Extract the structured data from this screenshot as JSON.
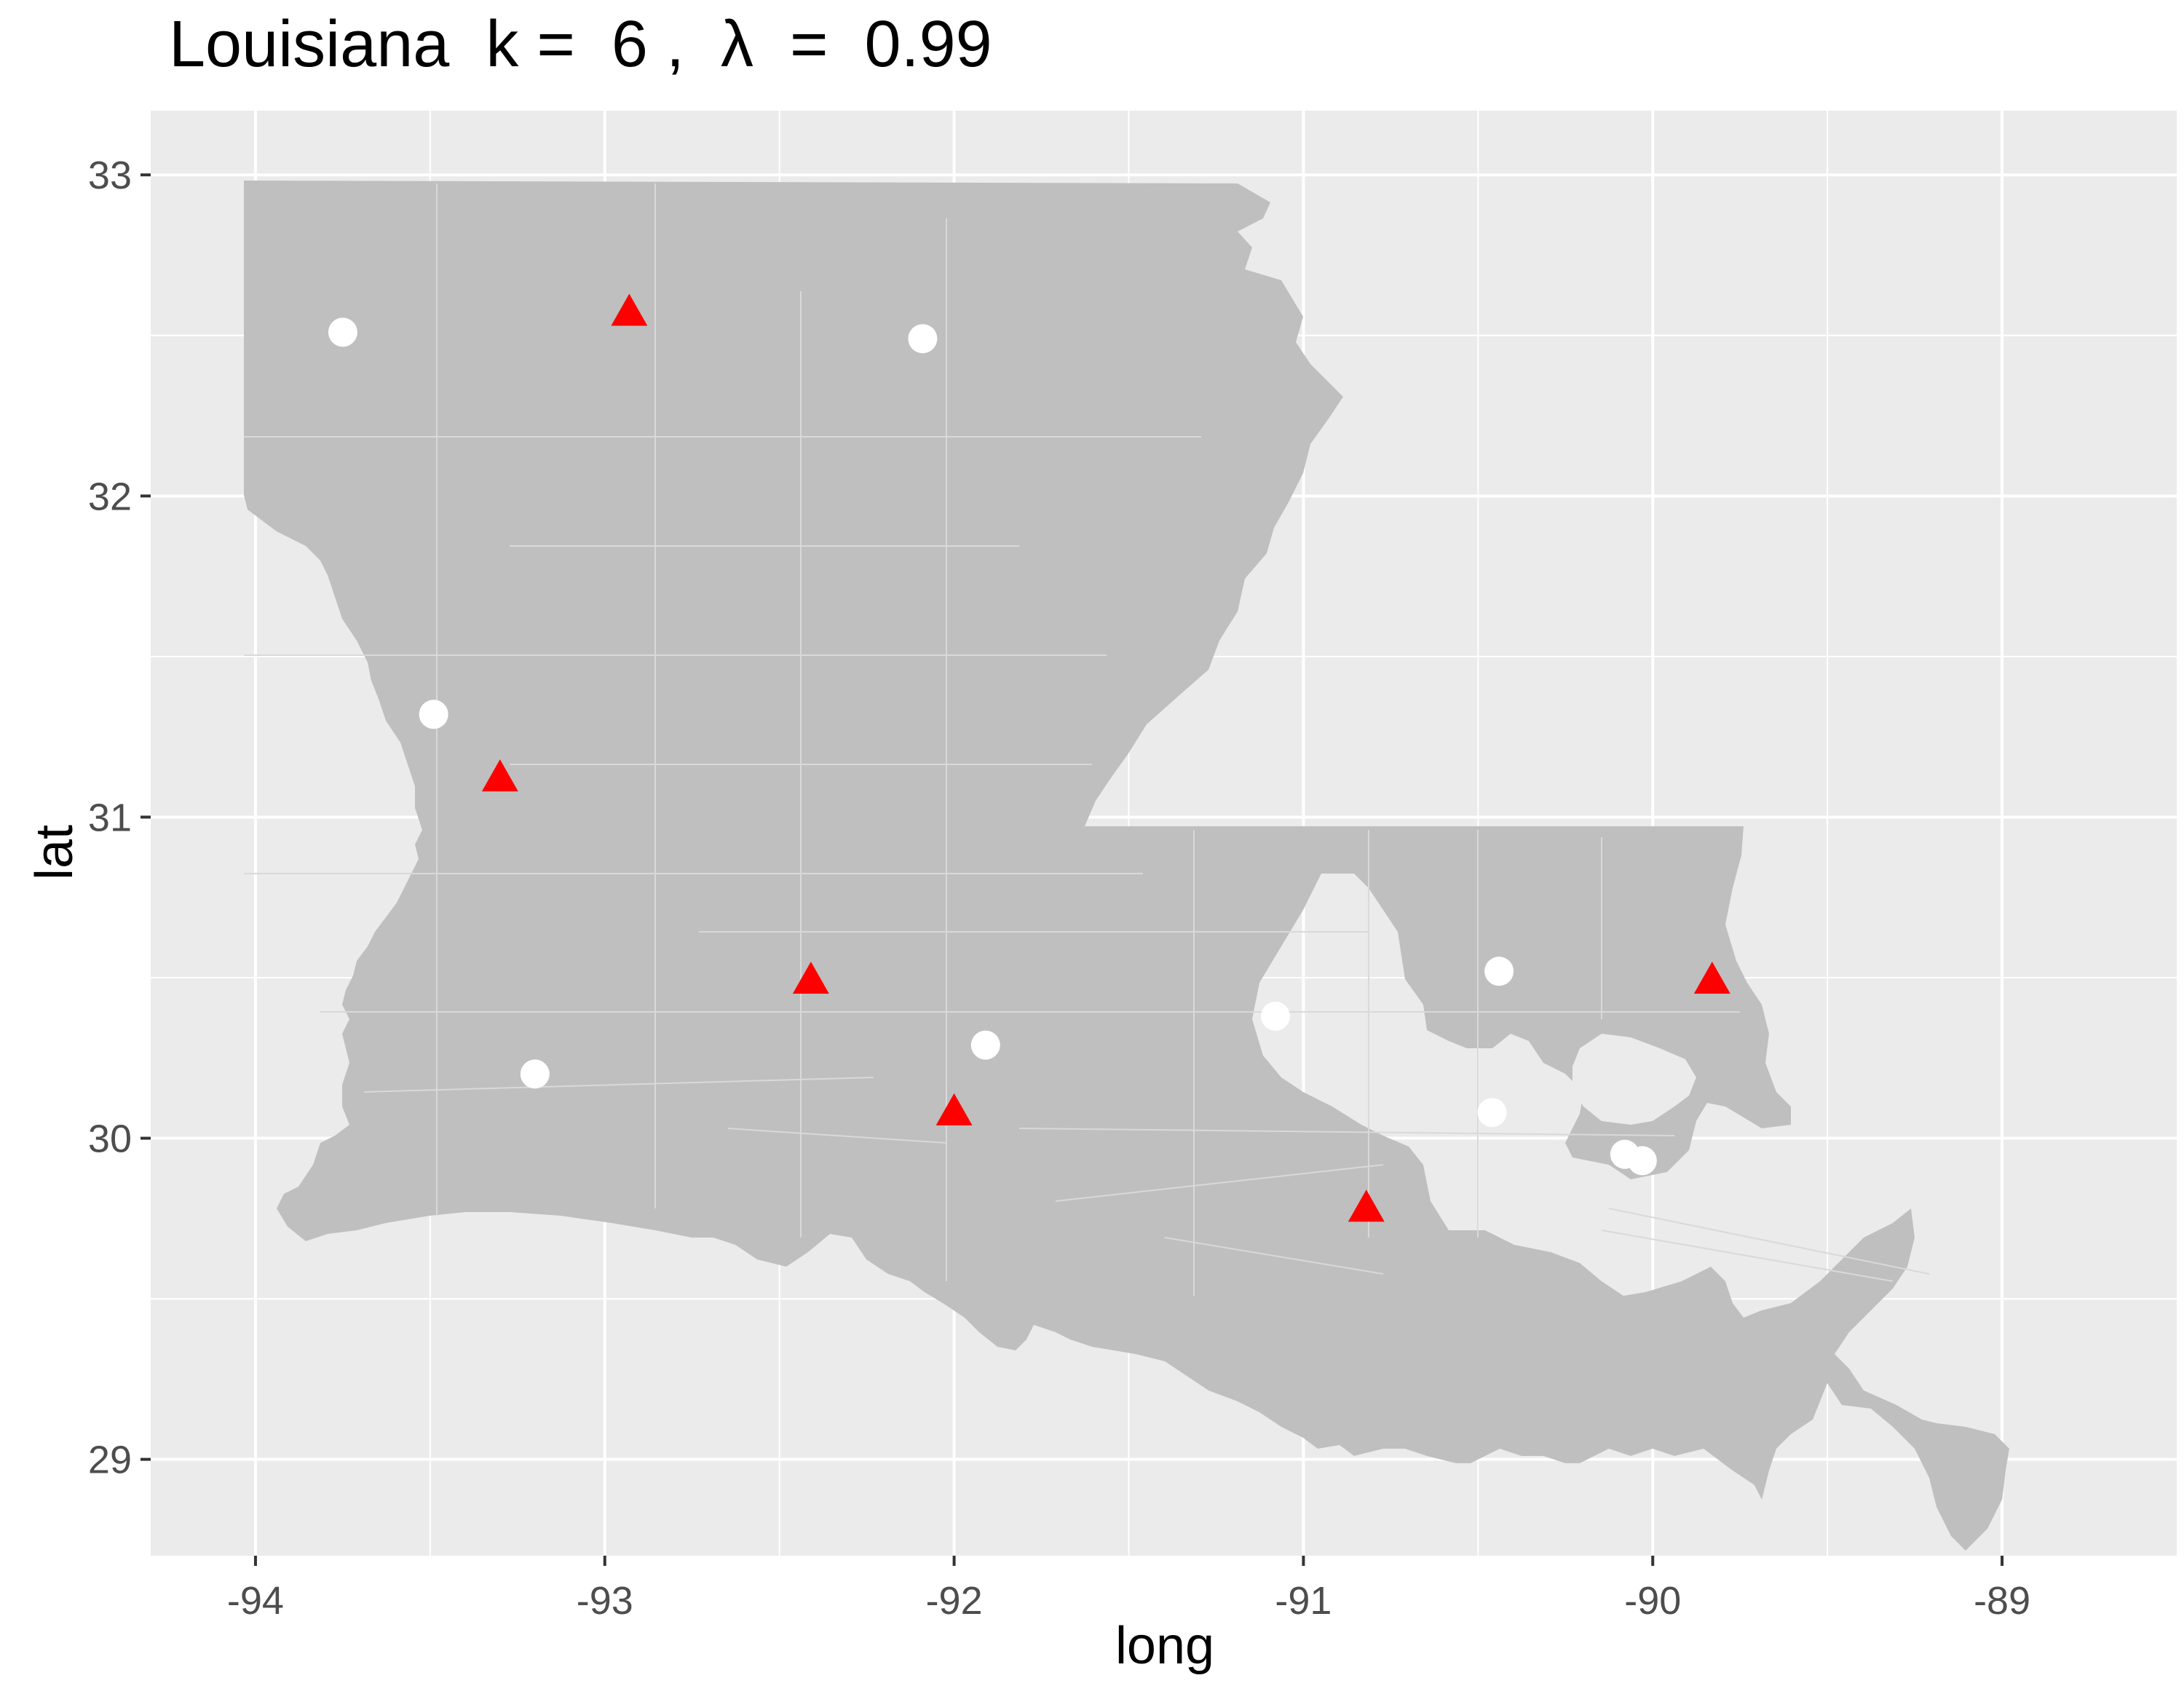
{
  "title": "Louisiana  k =  6 ,  λ  =  0.99",
  "x_axis": {
    "label": "long",
    "ticks": [
      "-94",
      "-93",
      "-92",
      "-91",
      "-90",
      "-89"
    ]
  },
  "y_axis": {
    "label": "lat",
    "ticks": [
      "33",
      "32",
      "31",
      "30",
      "29"
    ]
  },
  "colors": {
    "panel": "#ebebeb",
    "grid": "#ffffff",
    "land": "#bfbfbf",
    "boundary": "#d9d9d9",
    "circle": "#ffffff",
    "triangle": "#ff0000"
  },
  "chart_data": {
    "type": "scatter",
    "xlabel": "long",
    "ylabel": "lat",
    "xlim": [
      -94.3,
      -88.5
    ],
    "ylim": [
      28.7,
      33.2
    ],
    "xticks": [
      -94,
      -93,
      -92,
      -91,
      -90,
      -89
    ],
    "yticks": [
      29,
      30,
      31,
      32,
      33
    ],
    "grid": true,
    "background_layer": "Louisiana census tract polygons (grey fill, white borders)",
    "series": [
      {
        "marker": "circle",
        "color": "#ffffff",
        "points": [
          [
            -93.75,
            32.51
          ],
          [
            -92.09,
            32.49
          ],
          [
            -93.49,
            31.32
          ],
          [
            -91.08,
            30.38
          ],
          [
            -90.44,
            30.52
          ],
          [
            -91.91,
            30.29
          ],
          [
            -93.2,
            30.2
          ],
          [
            -90.46,
            30.08
          ],
          [
            -90.08,
            29.95
          ],
          [
            -90.03,
            29.93
          ]
        ]
      },
      {
        "marker": "triangle",
        "color": "#ff0000",
        "points": [
          [
            -92.93,
            32.57
          ],
          [
            -93.3,
            31.12
          ],
          [
            -92.41,
            30.49
          ],
          [
            -92.0,
            30.08
          ],
          [
            -90.82,
            29.78
          ],
          [
            -89.83,
            30.49
          ]
        ]
      }
    ]
  }
}
